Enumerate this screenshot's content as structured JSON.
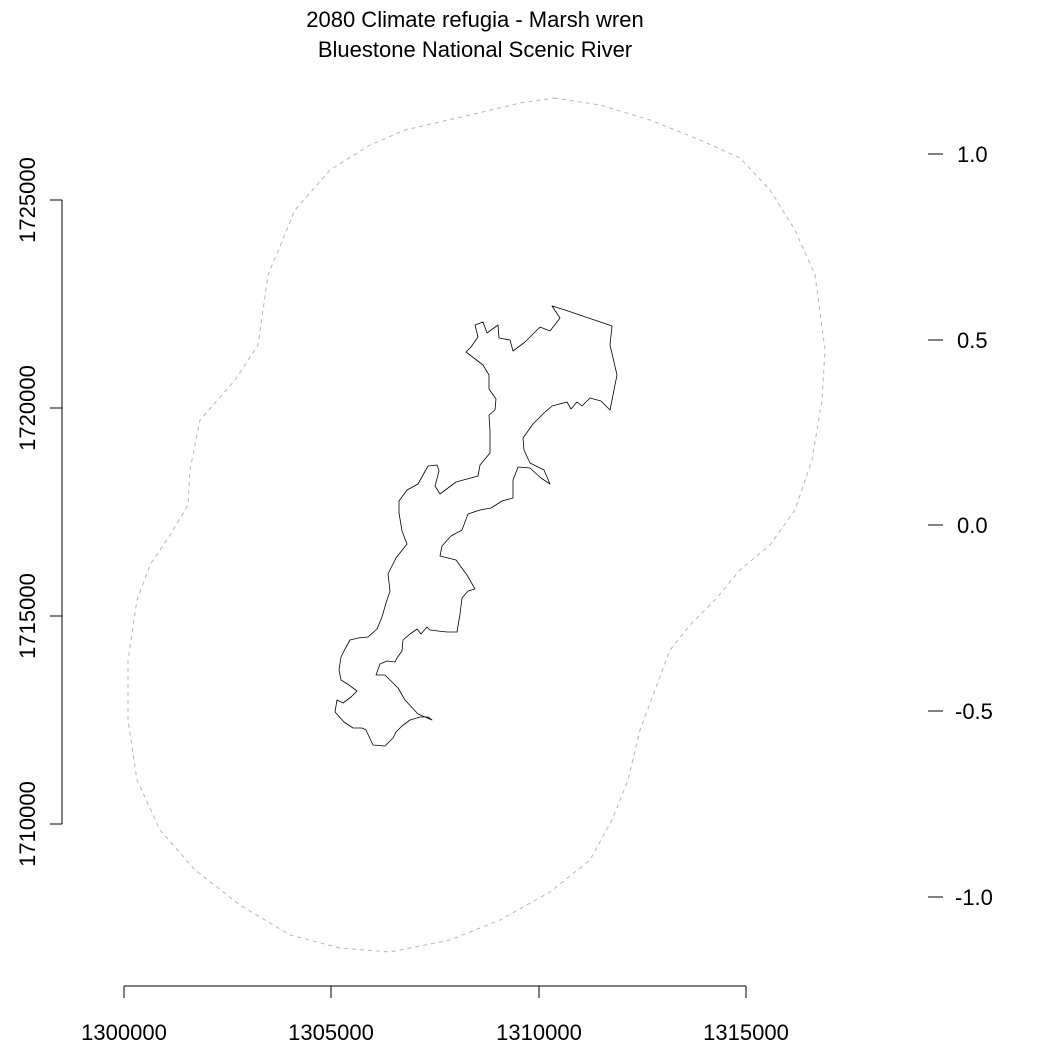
{
  "title": {
    "line1": "2080 Climate refugia - Marsh wren",
    "line2": "Bluestone National Scenic River"
  },
  "map": {
    "x_axis": {
      "ticks": [
        "1300000",
        "1305000",
        "1310000",
        "1315000"
      ]
    },
    "y_axis": {
      "ticks": [
        "1710000",
        "1715000",
        "1720000",
        "1725000"
      ]
    },
    "legend_scale": {
      "ticks": [
        "1.0",
        "0.5",
        "0.0",
        "-0.5",
        "-1.0"
      ]
    },
    "layers": [
      {
        "name": "buffer-outline",
        "style": "dashed",
        "color": "#b4b4b4"
      },
      {
        "name": "park-boundary",
        "style": "solid",
        "color": "#000000"
      }
    ]
  }
}
